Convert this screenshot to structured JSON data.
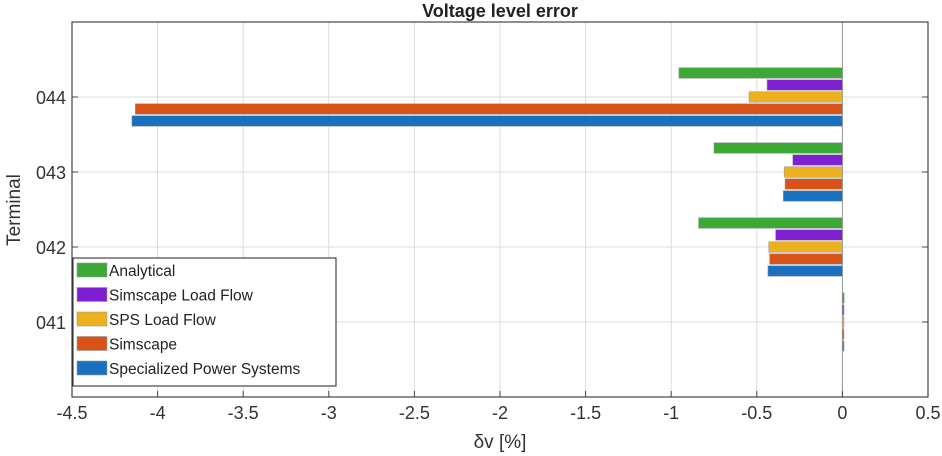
{
  "chart_data": {
    "type": "bar",
    "orientation": "horizontal",
    "title": "Voltage level error",
    "xlabel": "δv  [%]",
    "ylabel": "Terminal",
    "xlim": [
      -4.5,
      0.5
    ],
    "ylim": [
      40,
      45
    ],
    "xticks": [
      -4.5,
      -4,
      -3.5,
      -3,
      -2.5,
      -2,
      -1.5,
      -1,
      -0.5,
      0,
      0.5
    ],
    "xtick_labels": [
      "-4.5",
      "-4",
      "-3.5",
      "-3",
      "-2.5",
      "-2",
      "-1.5",
      "-1",
      "-0.5",
      "0",
      "0.5"
    ],
    "categories": [
      "041",
      "042",
      "043",
      "044"
    ],
    "grid": true,
    "legend_position": "bottom-left",
    "series": [
      {
        "name": "Analytical",
        "color": "#3aa935",
        "values": [
          0.01,
          -0.84,
          -0.75,
          -0.955
        ]
      },
      {
        "name": "Simscape Load Flow",
        "color": "#7e1fd1",
        "values": [
          0.008,
          -0.39,
          -0.29,
          -0.44
        ]
      },
      {
        "name": "SPS Load Flow",
        "color": "#edb120",
        "values": [
          0.005,
          -0.43,
          -0.34,
          -0.545
        ]
      },
      {
        "name": "Simscape",
        "color": "#d95319",
        "values": [
          0.005,
          -0.425,
          -0.335,
          -4.13
        ]
      },
      {
        "name": "Specialized Power Systems",
        "color": "#1870bf",
        "values": [
          0.005,
          -0.435,
          -0.345,
          -4.15
        ]
      }
    ]
  }
}
